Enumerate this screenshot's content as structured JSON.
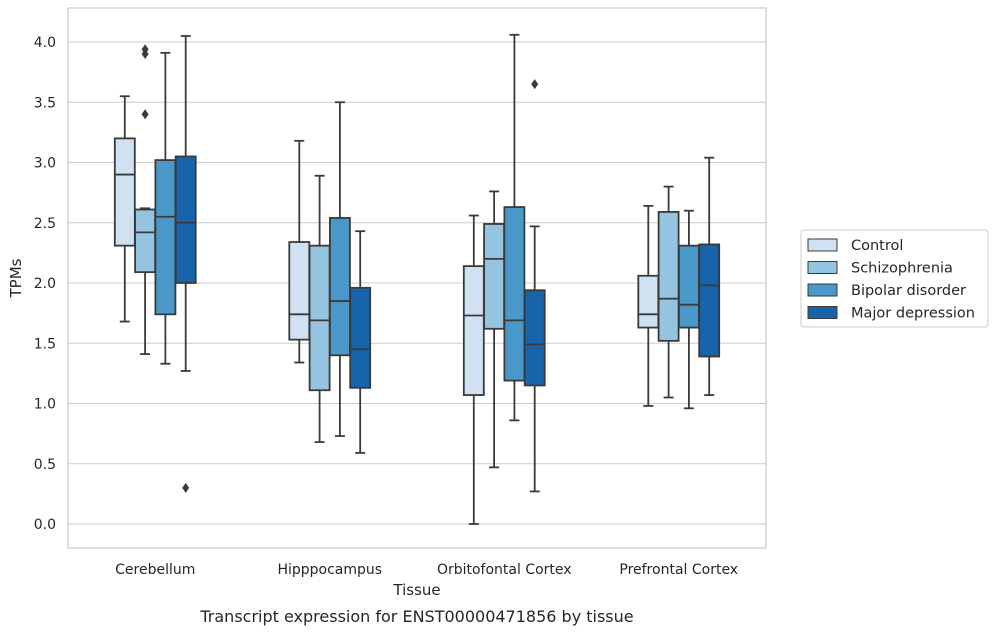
{
  "caption": "Transcript expression for ENST00000471856 by tissue",
  "chart_data": {
    "type": "box",
    "xlabel": "Tissue",
    "ylabel": "TPMs",
    "ylim": [
      -0.2,
      4.27
    ],
    "yticks": [
      0.0,
      0.5,
      1.0,
      1.5,
      2.0,
      2.5,
      3.0,
      3.5,
      4.0
    ],
    "ytick_labels": [
      "0.0",
      "0.5",
      "1.0",
      "1.5",
      "2.0",
      "2.5",
      "3.0",
      "3.5",
      "4.0"
    ],
    "grid": "horizontal",
    "legend_position": "right",
    "categories": [
      "Cerebellum",
      "Hipppocampus",
      "Orbitofontal Cortex",
      "Prefrontal Cortex"
    ],
    "series": [
      {
        "name": "Control",
        "color": "#d0e1f2",
        "boxes": [
          {
            "whisker_low": 1.68,
            "q1": 2.31,
            "median": 2.9,
            "q3": 3.2,
            "whisker_high": 3.55,
            "outliers": []
          },
          {
            "whisker_low": 1.34,
            "q1": 1.53,
            "median": 1.74,
            "q3": 2.34,
            "whisker_high": 3.18,
            "outliers": []
          },
          {
            "whisker_low": 0.0,
            "q1": 1.07,
            "median": 1.73,
            "q3": 2.14,
            "whisker_high": 2.56,
            "outliers": []
          },
          {
            "whisker_low": 0.98,
            "q1": 1.63,
            "median": 1.74,
            "q3": 2.06,
            "whisker_high": 2.64,
            "outliers": []
          }
        ]
      },
      {
        "name": "Schizophrenia",
        "color": "#94c4df",
        "boxes": [
          {
            "whisker_low": 1.41,
            "q1": 2.09,
            "median": 2.42,
            "q3": 2.61,
            "whisker_high": 2.62,
            "outliers": [
              3.4,
              3.9,
              3.94
            ]
          },
          {
            "whisker_low": 0.68,
            "q1": 1.11,
            "median": 1.69,
            "q3": 2.31,
            "whisker_high": 2.89,
            "outliers": []
          },
          {
            "whisker_low": 0.47,
            "q1": 1.62,
            "median": 2.2,
            "q3": 2.49,
            "whisker_high": 2.76,
            "outliers": []
          },
          {
            "whisker_low": 1.05,
            "q1": 1.52,
            "median": 1.87,
            "q3": 2.59,
            "whisker_high": 2.8,
            "outliers": []
          }
        ]
      },
      {
        "name": "Bipolar disorder",
        "color": "#4a98c9",
        "boxes": [
          {
            "whisker_low": 1.33,
            "q1": 1.74,
            "median": 2.55,
            "q3": 3.02,
            "whisker_high": 3.91,
            "outliers": []
          },
          {
            "whisker_low": 0.73,
            "q1": 1.4,
            "median": 1.85,
            "q3": 2.54,
            "whisker_high": 3.5,
            "outliers": []
          },
          {
            "whisker_low": 0.86,
            "q1": 1.19,
            "median": 1.69,
            "q3": 2.63,
            "whisker_high": 4.06,
            "outliers": []
          },
          {
            "whisker_low": 0.96,
            "q1": 1.63,
            "median": 1.82,
            "q3": 2.31,
            "whisker_high": 2.6,
            "outliers": []
          }
        ]
      },
      {
        "name": "Major depression",
        "color": "#1764ab",
        "boxes": [
          {
            "whisker_low": 1.27,
            "q1": 2.0,
            "median": 2.5,
            "q3": 3.05,
            "whisker_high": 4.05,
            "outliers": [
              0.3
            ]
          },
          {
            "whisker_low": 0.59,
            "q1": 1.13,
            "median": 1.45,
            "q3": 1.96,
            "whisker_high": 2.43,
            "outliers": []
          },
          {
            "whisker_low": 0.27,
            "q1": 1.15,
            "median": 1.49,
            "q3": 1.94,
            "whisker_high": 2.47,
            "outliers": [
              3.65
            ]
          },
          {
            "whisker_low": 1.07,
            "q1": 1.39,
            "median": 1.98,
            "q3": 2.32,
            "whisker_high": 3.04,
            "outliers": []
          }
        ]
      }
    ]
  }
}
